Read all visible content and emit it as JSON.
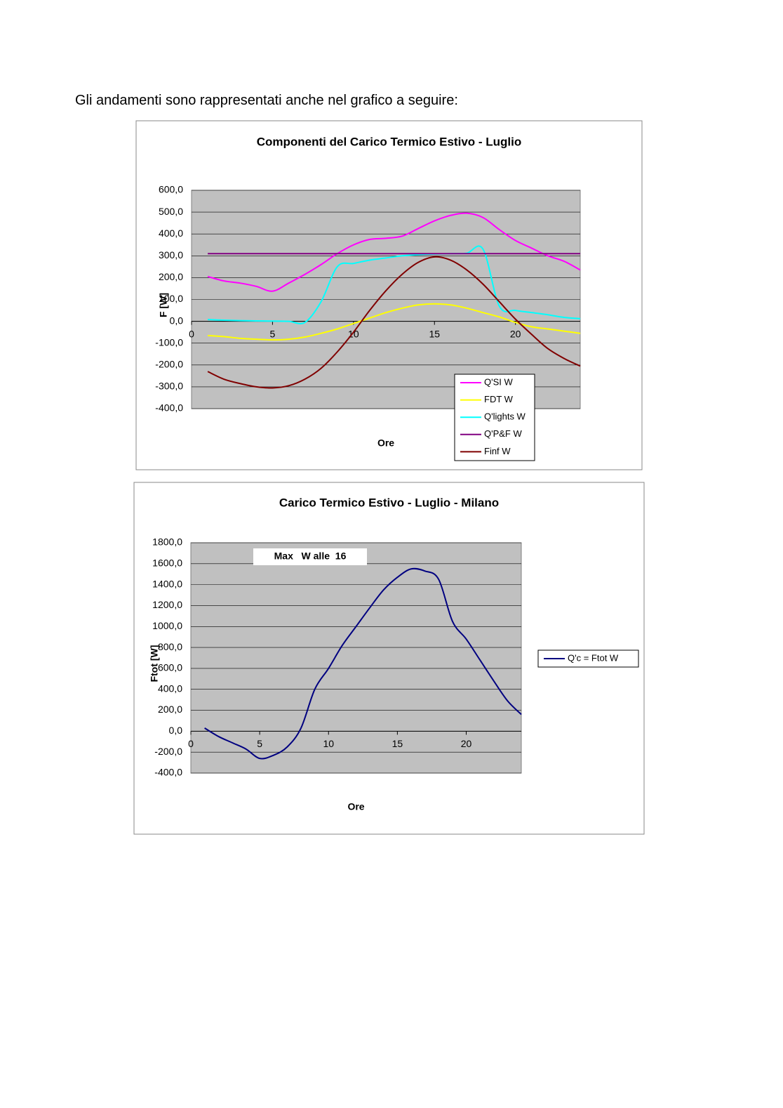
{
  "intro": "Gli andamenti sono rappresentati anche nel grafico a seguire:",
  "chart_data": [
    {
      "type": "line",
      "title": "Componenti del Carico Termico Estivo - Luglio",
      "xlabel": "Ore",
      "ylabel": "F  [W]",
      "x": [
        1,
        2,
        3,
        4,
        5,
        6,
        7,
        8,
        9,
        10,
        11,
        12,
        13,
        14,
        15,
        16,
        17,
        18,
        19,
        20,
        21,
        22,
        23,
        24
      ],
      "xlim": [
        0,
        24
      ],
      "xticks": [
        0,
        5,
        10,
        15,
        20
      ],
      "ylim": [
        -400,
        600
      ],
      "yticks": [
        {
          "value": -400,
          "label": "-400,0"
        },
        {
          "value": -300,
          "label": "-300,0"
        },
        {
          "value": -200,
          "label": "-200,0"
        },
        {
          "value": -100,
          "label": "-100,0"
        },
        {
          "value": 0,
          "label": "0,0"
        },
        {
          "value": 100,
          "label": "100,0"
        },
        {
          "value": 200,
          "label": "200,0"
        },
        {
          "value": 300,
          "label": "300,0"
        },
        {
          "value": 400,
          "label": "400,0"
        },
        {
          "value": 500,
          "label": "500,0"
        },
        {
          "value": 600,
          "label": "600,0"
        }
      ],
      "grid": true,
      "series": [
        {
          "name": "Q'SI W",
          "color": "#ff00ff",
          "values": [
            205,
            185,
            175,
            160,
            138,
            175,
            215,
            260,
            310,
            350,
            375,
            380,
            390,
            425,
            460,
            485,
            495,
            475,
            420,
            370,
            335,
            300,
            275,
            235
          ]
        },
        {
          "name": "FDT W",
          "color": "#ffff00",
          "values": [
            -65,
            -70,
            -78,
            -82,
            -85,
            -82,
            -72,
            -55,
            -35,
            -10,
            15,
            40,
            60,
            75,
            80,
            75,
            60,
            40,
            20,
            -5,
            -25,
            -35,
            -45,
            -55
          ]
        },
        {
          "name": "Q'lights W",
          "color": "#00ffff",
          "values": [
            8,
            5,
            3,
            2,
            1,
            0,
            -5,
            90,
            250,
            265,
            280,
            290,
            300,
            305,
            308,
            310,
            312,
            330,
            70,
            50,
            40,
            30,
            18,
            12
          ]
        },
        {
          "name": "Q'P&F W",
          "color": "#800080",
          "values": [
            310,
            310,
            310,
            310,
            310,
            310,
            310,
            310,
            310,
            310,
            310,
            310,
            310,
            310,
            310,
            310,
            310,
            310,
            310,
            310,
            310,
            310,
            310,
            310
          ]
        },
        {
          "name": "Finf W",
          "color": "#800000",
          "values": [
            -230,
            -265,
            -285,
            -300,
            -305,
            -295,
            -265,
            -215,
            -140,
            -50,
            50,
            140,
            215,
            270,
            295,
            280,
            235,
            170,
            90,
            10,
            -60,
            -125,
            -170,
            -205
          ]
        }
      ]
    },
    {
      "type": "line",
      "title": "Carico Termico Estivo - Luglio - Milano",
      "xlabel": "Ore",
      "ylabel": "Ftot [W]",
      "annotation": "Max   W alle  16",
      "x": [
        1,
        2,
        3,
        4,
        5,
        6,
        7,
        8,
        9,
        10,
        11,
        12,
        13,
        14,
        15,
        16,
        17,
        18,
        19,
        20,
        21,
        22,
        23,
        24
      ],
      "xlim": [
        0,
        24
      ],
      "xticks": [
        0,
        5,
        10,
        15,
        20
      ],
      "ylim": [
        -400,
        1800
      ],
      "yticks": [
        {
          "value": -400,
          "label": "-400,0"
        },
        {
          "value": -200,
          "label": "-200,0"
        },
        {
          "value": 0,
          "label": "0,0"
        },
        {
          "value": 200,
          "label": "200,0"
        },
        {
          "value": 400,
          "label": "400,0"
        },
        {
          "value": 600,
          "label": "600,0"
        },
        {
          "value": 800,
          "label": "800,0"
        },
        {
          "value": 1000,
          "label": "1000,0"
        },
        {
          "value": 1200,
          "label": "1200,0"
        },
        {
          "value": 1400,
          "label": "1400,0"
        },
        {
          "value": 1600,
          "label": "1600,0"
        },
        {
          "value": 1800,
          "label": "1800,0"
        }
      ],
      "grid": true,
      "series": [
        {
          "name": "Q'c = Ftot  W",
          "color": "#000080",
          "values": [
            30,
            -50,
            -110,
            -170,
            -260,
            -230,
            -150,
            30,
            400,
            600,
            820,
            1000,
            1180,
            1350,
            1470,
            1550,
            1530,
            1450,
            1050,
            880,
            680,
            480,
            290,
            160
          ]
        }
      ]
    }
  ]
}
